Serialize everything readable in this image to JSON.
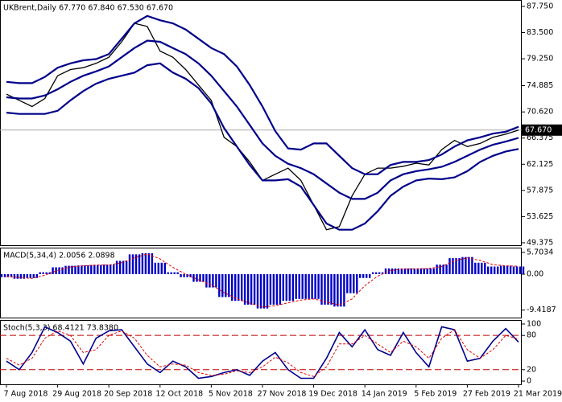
{
  "chart_data": [
    {
      "type": "line",
      "title": "UKBrent,Daily  67.770 67.840 67.530 67.670",
      "ylim": [
        48.98,
        88.79
      ],
      "yticks": [
        {
          "value": 87.75,
          "label": "87.750"
        },
        {
          "value": 83.5,
          "label": "83.500"
        },
        {
          "value": 79.25,
          "label": "79.250"
        },
        {
          "value": 74.885,
          "label": "74.885"
        },
        {
          "value": 70.62,
          "label": "70.620"
        },
        {
          "value": 66.375,
          "label": "66.375"
        },
        {
          "value": 62.125,
          "label": "62.125"
        },
        {
          "value": 57.875,
          "label": "57.875"
        },
        {
          "value": 53.625,
          "label": "53.625"
        },
        {
          "value": 49.375,
          "label": "49.375"
        }
      ],
      "last_price": {
        "value": 67.67,
        "label": "67.670"
      },
      "series": [
        {
          "color": "#000000",
          "width": 1.3,
          "values": [
            73.5,
            72.5,
            71.5,
            72.8,
            76.5,
            77.5,
            77.8,
            78.5,
            79.5,
            82,
            85,
            84.5,
            80.5,
            79.5,
            77.5,
            75,
            72.5,
            66.5,
            65,
            62.5,
            59.5,
            60.5,
            61.5,
            59.5,
            55.5,
            51.5,
            52,
            57,
            60.5,
            61.5,
            61.5,
            61.8,
            62.3,
            62,
            64.5,
            66,
            65,
            65.5,
            66.5,
            67,
            67.67
          ]
        },
        {
          "color": "#00008b",
          "width": 2.2,
          "values": [
            73,
            72.8,
            72.8,
            73.3,
            74.3,
            75.5,
            76.5,
            77.2,
            78,
            79.5,
            81,
            82.2,
            82,
            81,
            80,
            78.5,
            76.5,
            74,
            71.5,
            68.5,
            65.5,
            63.5,
            62.2,
            61.5,
            60.5,
            59,
            57.5,
            56.5,
            56.5,
            57.5,
            59.5,
            60.5,
            61,
            61.3,
            61.7,
            62.5,
            63.5,
            64.5,
            65.3,
            65.8,
            66.4
          ]
        },
        {
          "color": "#00008b",
          "width": 2.2,
          "values": [
            75.5,
            75.3,
            75.3,
            76.3,
            77.8,
            78.5,
            79,
            79.2,
            80,
            82.5,
            85,
            86.2,
            85.5,
            85,
            84,
            82.5,
            81,
            80,
            78,
            75,
            71.5,
            67.5,
            64.7,
            64.5,
            65.5,
            65.5,
            63.5,
            61.5,
            60.5,
            60.5,
            62,
            62.5,
            62.5,
            62.8,
            63.7,
            65,
            66,
            66.5,
            67.1,
            67.4,
            68.2
          ]
        },
        {
          "color": "#00008b",
          "width": 2.2,
          "values": [
            70.5,
            70.3,
            70.3,
            70.3,
            70.8,
            72.5,
            74,
            75.2,
            76,
            76.5,
            77,
            78.2,
            78.5,
            77,
            76,
            74.5,
            72,
            68,
            65,
            62,
            59.5,
            59.5,
            59.7,
            58.5,
            55.5,
            52.5,
            51.5,
            51.5,
            52.5,
            54.5,
            57,
            58.5,
            59.5,
            59.8,
            59.7,
            60,
            61,
            62.5,
            63.5,
            64.2,
            64.6
          ]
        }
      ]
    },
    {
      "type": "macd",
      "title": "MACD(5,34,4) 2.0056 2.0898",
      "ylim": [
        -11.39,
        6.96
      ],
      "yticks": [
        5.7034,
        {
          "value": 0,
          "label": "0.00"
        },
        -9.4187
      ],
      "series": [
        {
          "color": "#0000c8",
          "kind": "bar",
          "values": [
            -0.8,
            -1.2,
            -1,
            0.5,
            1.8,
            2.2,
            2.3,
            2.4,
            2.5,
            3.5,
            5.2,
            5.5,
            3,
            0.5,
            -0.8,
            -2,
            -3.5,
            -6,
            -7,
            -8,
            -9,
            -8,
            -7,
            -6.5,
            -6.5,
            -8,
            -8.5,
            -5,
            -1,
            0.5,
            1.5,
            1.5,
            1.5,
            1.5,
            2.5,
            4.2,
            4.5,
            3,
            2,
            2.2,
            2.0056
          ]
        },
        {
          "color": "#e00000",
          "kind": "dash",
          "values": [
            -0.5,
            -0.9,
            -1.1,
            -0.3,
            1,
            1.9,
            2.2,
            2.4,
            2.4,
            3,
            4.3,
            5.3,
            4,
            1.8,
            0,
            -1.5,
            -2.8,
            -4.8,
            -6.5,
            -7.6,
            -8.6,
            -8.3,
            -7.5,
            -6.8,
            -6.5,
            -7.3,
            -8.1,
            -6.5,
            -3,
            -0.5,
            1,
            1.3,
            1.4,
            1.5,
            2,
            3.5,
            4.3,
            3.6,
            2.5,
            2.2,
            2.0898
          ]
        }
      ]
    },
    {
      "type": "stoch",
      "title": "Stoch(5,3,3) 68.4121 73.8380",
      "ylim": [
        -5.6,
        107
      ],
      "yticks": [
        100,
        80,
        20,
        0
      ],
      "level_lines": true,
      "categories": [
        "7 Aug 2018",
        null,
        null,
        null,
        "29 Aug 2018",
        null,
        null,
        null,
        "20 Sep 2018",
        null,
        null,
        null,
        "12 Oct 2018",
        null,
        null,
        null,
        "5 Nov 2018",
        null,
        null,
        null,
        "27 Nov 2018",
        null,
        null,
        null,
        "19 Dec 2018",
        null,
        null,
        null,
        "14 Jan 2019",
        null,
        null,
        null,
        "5 Feb 2019",
        null,
        null,
        null,
        "27 Feb 2019",
        null,
        null,
        null,
        "21 Mar 2019"
      ],
      "series": [
        {
          "color": "#00008b",
          "kind": "line",
          "values": [
            35,
            20,
            50,
            95,
            85,
            70,
            30,
            75,
            88,
            90,
            60,
            30,
            15,
            35,
            25,
            5,
            8,
            15,
            20,
            10,
            35,
            50,
            20,
            5,
            5,
            40,
            85,
            60,
            90,
            55,
            45,
            85,
            50,
            25,
            95,
            90,
            35,
            40,
            70,
            92,
            68.4121
          ]
        },
        {
          "color": "#e00000",
          "kind": "dash",
          "values": [
            40,
            28,
            40,
            75,
            88,
            80,
            50,
            55,
            80,
            88,
            75,
            45,
            25,
            30,
            28,
            15,
            10,
            12,
            18,
            15,
            25,
            42,
            32,
            15,
            8,
            25,
            65,
            65,
            80,
            65,
            50,
            70,
            60,
            40,
            75,
            90,
            55,
            40,
            55,
            80,
            73.838
          ]
        }
      ]
    }
  ]
}
